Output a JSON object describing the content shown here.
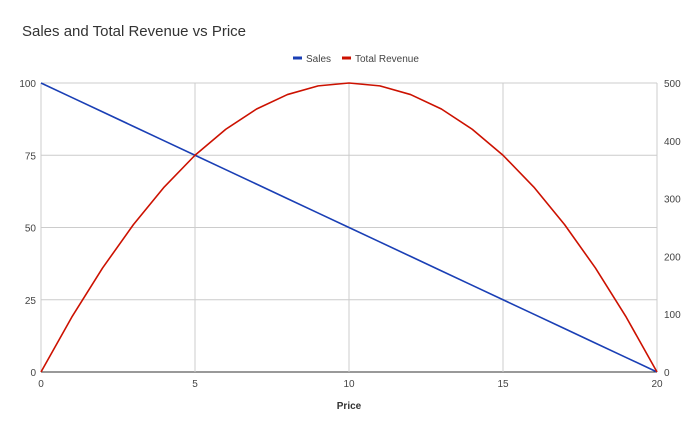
{
  "chart_data": {
    "type": "line",
    "title": "Sales and Total Revenue vs Price",
    "xlabel": "Price",
    "ylabel_left": "",
    "ylabel_right": "",
    "legend_position": "top",
    "grid": true,
    "xlim": [
      0,
      20
    ],
    "ylim_left": [
      0,
      100
    ],
    "ylim_right": [
      0,
      500
    ],
    "x_ticks": [
      "0",
      "5",
      "10",
      "15",
      "20"
    ],
    "y_left_ticks": [
      "0",
      "25",
      "50",
      "75",
      "100"
    ],
    "y_right_ticks": [
      "0",
      "100",
      "200",
      "300",
      "400",
      "500"
    ],
    "x": [
      0,
      1,
      2,
      3,
      4,
      5,
      6,
      7,
      8,
      9,
      10,
      11,
      12,
      13,
      14,
      15,
      16,
      17,
      18,
      19,
      20
    ],
    "series": [
      {
        "name": "Sales",
        "axis": "left",
        "color": "#1a3fb5",
        "values": [
          100,
          95,
          90,
          85,
          80,
          75,
          70,
          65,
          60,
          55,
          50,
          45,
          40,
          35,
          30,
          25,
          20,
          15,
          10,
          5,
          0
        ]
      },
      {
        "name": "Total Revenue",
        "axis": "right",
        "color": "#cc1100",
        "values": [
          0,
          95,
          180,
          255,
          320,
          375,
          420,
          455,
          480,
          495,
          500,
          495,
          480,
          455,
          420,
          375,
          320,
          255,
          180,
          95,
          0
        ]
      }
    ]
  }
}
